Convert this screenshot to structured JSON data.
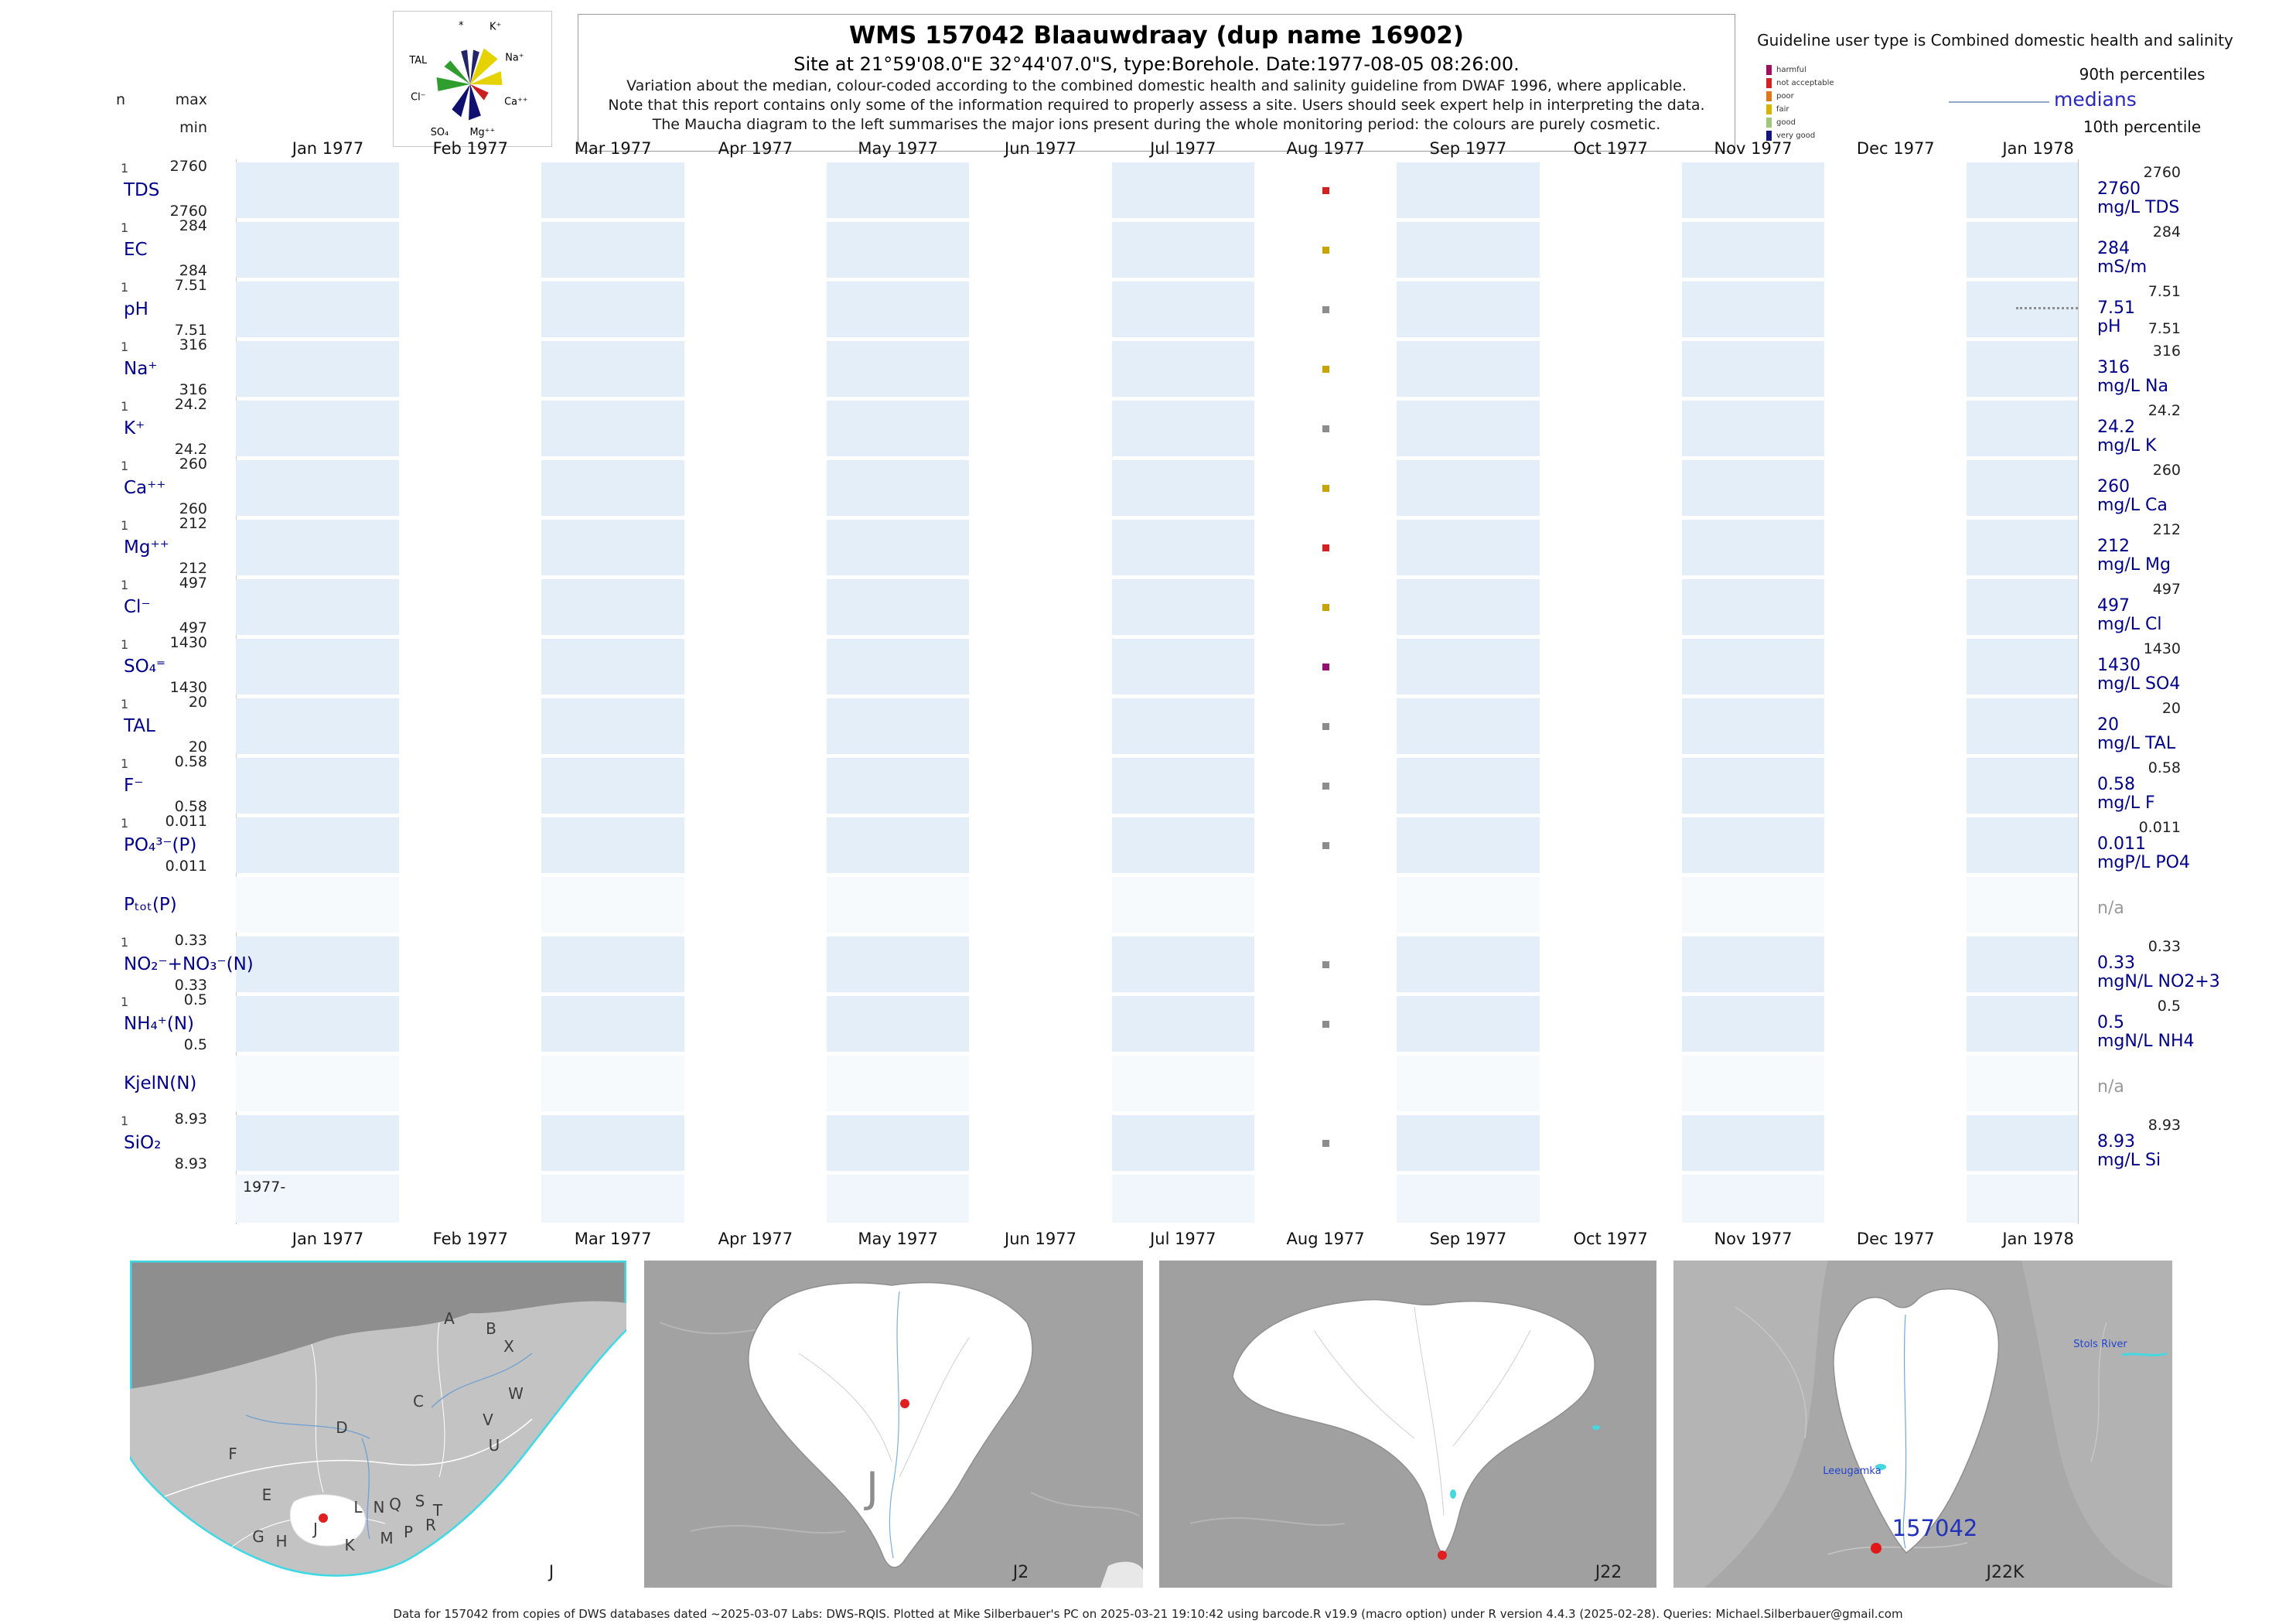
{
  "header": {
    "title": "WMS 157042  Blaauwdraay (dup name 16902)",
    "subtitle": "Site at 21°59'08.0\"E 32°44'07.0\"S, type:Borehole. Date:1977-08-05 08:26:00.",
    "note1": "Variation about the median,  colour-coded according to the combined domestic health and salinity guideline from DWAF 1996, where applicable.",
    "note2": "Note that this report contains only some of the information required to properly assess a site. Users should seek expert help in interpreting the data.",
    "note3": "The Maucha diagram to the left summarises the major ions present during the whole monitoring period: the colours are purely cosmetic."
  },
  "left_axis": {
    "n": "n",
    "max": "max",
    "min": "min",
    "year_start": "1977-"
  },
  "legend": {
    "guideline_title": "Guideline user type is Combined domestic health and salinity",
    "classes": [
      {
        "label": "harmful",
        "color": "#a01060"
      },
      {
        "label": "not acceptable",
        "color": "#d42020"
      },
      {
        "label": "poor",
        "color": "#e07818"
      },
      {
        "label": "fair",
        "color": "#d8b400"
      },
      {
        "label": "good",
        "color": "#a0c878"
      },
      {
        "label": "very good",
        "color": "#141480"
      }
    ],
    "p90": "90th percentiles",
    "medians": "medians",
    "p10": "10th percentile"
  },
  "maucha": {
    "labels": {
      "star": "*",
      "k": "K⁺",
      "na": "Na⁺",
      "ca": "Ca⁺⁺",
      "mg": "Mg⁺⁺",
      "so4": "SO₄",
      "cl": "Cl⁻",
      "tal": "TAL"
    }
  },
  "chart_data": {
    "type": "scatter",
    "title": "WMS 157042 Blaauwdraay (dup name 16902)",
    "sample_month": "Aug 1977",
    "sample_date": "1977-08-05",
    "x_categories": [
      "Jan 1977",
      "Feb 1977",
      "Mar 1977",
      "Apr 1977",
      "May 1977",
      "Jun 1977",
      "Jul 1977",
      "Aug 1977",
      "Sep 1977",
      "Oct 1977",
      "Nov 1977",
      "Dec 1977",
      "Jan 1978"
    ],
    "rows": [
      {
        "param": "TDS",
        "n": "1",
        "max": "2760",
        "min": "2760",
        "median": "2760",
        "p90": "2760",
        "unit": "mg/L TDS",
        "color": "#d42020",
        "na": false
      },
      {
        "param": "EC",
        "n": "1",
        "max": "284",
        "min": "284",
        "median": "284",
        "p90": "284",
        "unit": "mS/m",
        "color": "#c8a400",
        "na": false
      },
      {
        "param": "pH",
        "n": "1",
        "max": "7.51",
        "min": "7.51",
        "median": "7.51",
        "p90": "7.51",
        "p10": "7.51",
        "unit": "pH",
        "color": "#8c8c8c",
        "na": false,
        "dotted": true
      },
      {
        "param": "Na⁺",
        "n": "1",
        "max": "316",
        "min": "316",
        "median": "316",
        "p90": "316",
        "unit": "mg/L Na",
        "color": "#c8a400",
        "na": false
      },
      {
        "param": "K⁺",
        "n": "1",
        "max": "24.2",
        "min": "24.2",
        "median": "24.2",
        "p90": "24.2",
        "unit": "mg/L K",
        "color": "#8c8c8c",
        "na": false
      },
      {
        "param": "Ca⁺⁺",
        "n": "1",
        "max": "260",
        "min": "260",
        "median": "260",
        "p90": "260",
        "unit": "mg/L Ca",
        "color": "#c8a400",
        "na": false
      },
      {
        "param": "Mg⁺⁺",
        "n": "1",
        "max": "212",
        "min": "212",
        "median": "212",
        "p90": "212",
        "unit": "mg/L Mg",
        "color": "#d42020",
        "na": false
      },
      {
        "param": "Cl⁻",
        "n": "1",
        "max": "497",
        "min": "497",
        "median": "497",
        "p90": "497",
        "unit": "mg/L Cl",
        "color": "#c8a400",
        "na": false
      },
      {
        "param": "SO₄⁼",
        "n": "1",
        "max": "1430",
        "min": "1430",
        "median": "1430",
        "p90": "1430",
        "unit": "mg/L SO4",
        "color": "#941070",
        "na": false
      },
      {
        "param": "TAL",
        "n": "1",
        "max": "20",
        "min": "20",
        "median": "20",
        "p90": "20",
        "unit": "mg/L TAL",
        "color": "#8c8c8c",
        "na": false
      },
      {
        "param": "F⁻",
        "n": "1",
        "max": "0.58",
        "min": "0.58",
        "median": "0.58",
        "p90": "0.58",
        "unit": "mg/L F",
        "color": "#8c8c8c",
        "na": false
      },
      {
        "param": "PO₄³⁻(P)",
        "n": "1",
        "max": "0.011",
        "min": "0.011",
        "median": "0.011",
        "p90": "0.011",
        "unit": "mgP/L PO4",
        "color": "#8c8c8c",
        "na": false
      },
      {
        "param": "Pₜₒₜ(P)",
        "na": true,
        "na_label": "n/a"
      },
      {
        "param": "NO₂⁻+NO₃⁻(N)",
        "n": "1",
        "max": "0.33",
        "min": "0.33",
        "median": "0.33",
        "p90": "0.33",
        "unit": "mgN/L NO2+3",
        "color": "#8c8c8c",
        "na": false
      },
      {
        "param": "NH₄⁺(N)",
        "n": "1",
        "max": "0.5",
        "min": "0.5",
        "median": "0.5",
        "p90": "0.5",
        "unit": "mgN/L NH4",
        "color": "#8c8c8c",
        "na": false
      },
      {
        "param": "KjelN(N)",
        "na": true,
        "na_label": "n/a"
      },
      {
        "param": "SiO₂",
        "n": "1",
        "max": "8.93",
        "min": "8.93",
        "median": "8.93",
        "p90": "8.93",
        "unit": "mg/L Si",
        "color": "#8c8c8c",
        "na": false
      }
    ]
  },
  "maps": {
    "primary": {
      "code": "J",
      "letters": [
        "A",
        "B",
        "X",
        "C",
        "W",
        "D",
        "V",
        "U",
        "F",
        "E",
        "L",
        "N",
        "Q",
        "S",
        "T",
        "R",
        "P",
        "M",
        "K",
        "J",
        "H",
        "G"
      ]
    },
    "level2": {
      "code": "J2",
      "big_letter": "J"
    },
    "level3": {
      "code": "J22"
    },
    "level4": {
      "code": "J22K",
      "site": "157042",
      "label1": "Leeugamka",
      "label2": "Stols River"
    }
  },
  "footer": "Data for 157042 from copies of DWS databases dated ~2025-03-07 Labs: DWS-RQIS. Plotted at Mike Silberbauer's PC on 2025-03-21 19:10:42 using barcode.R v19.9 (macro option) under R version 4.4.3 (2025-02-28). Queries: Michael.Silberbauer@gmail.com"
}
